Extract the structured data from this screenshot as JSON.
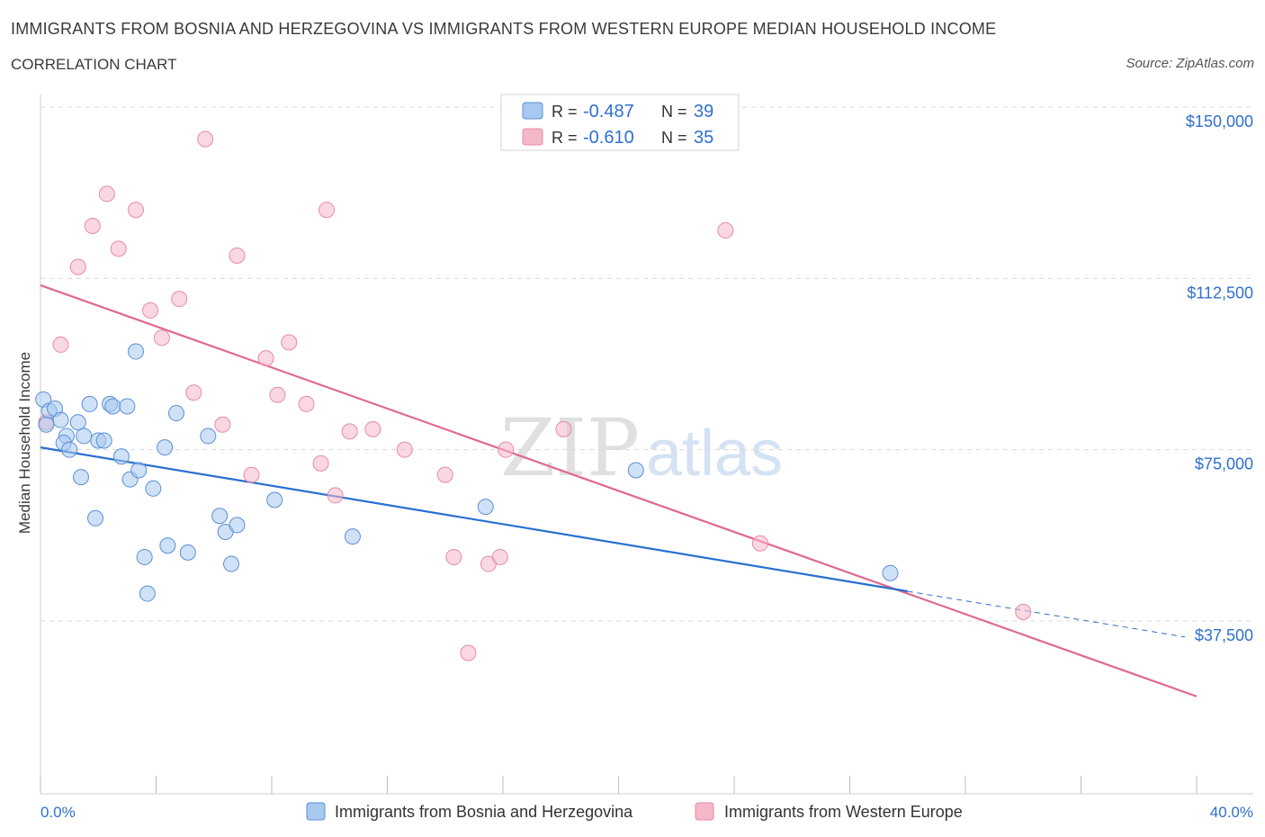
{
  "title": "IMMIGRANTS FROM BOSNIA AND HERZEGOVINA VS IMMIGRANTS FROM WESTERN EUROPE MEDIAN HOUSEHOLD INCOME",
  "subtitle": "CORRELATION CHART",
  "source": "Source: ZipAtlas.com",
  "watermark": {
    "zip": "ZIP",
    "atlas": "atlas"
  },
  "legend_box": [
    {
      "r_label": "R =",
      "r_value": "-0.487",
      "n_label": "N =",
      "n_value": "39"
    },
    {
      "r_label": "R =",
      "r_value": "-0.610",
      "n_label": "N =",
      "n_value": "35"
    }
  ],
  "colors": {
    "blue_fill": "#a8c8f0",
    "blue_stroke": "#5b8fd6",
    "blue_line": "#2a6fd1",
    "pink_fill": "#f5b8c8",
    "pink_stroke": "#e88aa5",
    "pink_line": "#e06890",
    "value_text": "#2f6fcf",
    "grid": "#d8d8d8"
  },
  "chart_data": {
    "type": "scatter",
    "ylabel": "Median Household Income",
    "xlim": [
      0,
      40
    ],
    "ylim": [
      0,
      150000
    ],
    "x_tick_labels": [
      "0.0%",
      "40.0%"
    ],
    "y_ticks": [
      {
        "value": 150000,
        "label": "$150,000"
      },
      {
        "value": 112500,
        "label": "$112,500"
      },
      {
        "value": 75000,
        "label": "$75,000"
      },
      {
        "value": 37500,
        "label": "$37,500"
      }
    ],
    "grid": true,
    "series": [
      {
        "name": "Immigrants from Bosnia and Herzegovina",
        "color": "blue",
        "points": [
          [
            0.1,
            86000
          ],
          [
            0.3,
            83500
          ],
          [
            0.5,
            84000
          ],
          [
            0.7,
            81500
          ],
          [
            0.9,
            78000
          ],
          [
            0.8,
            76500
          ],
          [
            1.0,
            75000
          ],
          [
            1.3,
            81000
          ],
          [
            1.4,
            69000
          ],
          [
            1.5,
            78000
          ],
          [
            1.7,
            85000
          ],
          [
            1.9,
            60000
          ],
          [
            2.0,
            77000
          ],
          [
            2.2,
            77000
          ],
          [
            2.4,
            85000
          ],
          [
            2.5,
            84500
          ],
          [
            2.8,
            73500
          ],
          [
            3.0,
            84500
          ],
          [
            3.1,
            68500
          ],
          [
            3.3,
            96500
          ],
          [
            3.4,
            70500
          ],
          [
            3.6,
            51500
          ],
          [
            3.7,
            43500
          ],
          [
            3.9,
            66500
          ],
          [
            4.3,
            75500
          ],
          [
            4.4,
            54000
          ],
          [
            4.7,
            83000
          ],
          [
            5.1,
            52500
          ],
          [
            5.8,
            78000
          ],
          [
            6.2,
            60500
          ],
          [
            6.4,
            57000
          ],
          [
            6.6,
            50000
          ],
          [
            6.8,
            58500
          ],
          [
            8.1,
            64000
          ],
          [
            10.8,
            56000
          ],
          [
            15.4,
            62500
          ],
          [
            20.6,
            70500
          ],
          [
            29.4,
            48000
          ],
          [
            0.2,
            80500
          ]
        ],
        "trend": {
          "x": [
            0,
            30.0
          ],
          "y": [
            75500,
            44000
          ]
        },
        "trend_ext": {
          "x": [
            30.0,
            39.6
          ],
          "y": [
            44000,
            34000
          ]
        }
      },
      {
        "name": "Immigrants from Western Europe",
        "color": "pink",
        "points": [
          [
            0.2,
            81000
          ],
          [
            0.7,
            98000
          ],
          [
            1.3,
            115000
          ],
          [
            1.8,
            124000
          ],
          [
            2.3,
            131000
          ],
          [
            2.7,
            119000
          ],
          [
            3.3,
            127500
          ],
          [
            3.8,
            105500
          ],
          [
            4.2,
            99500
          ],
          [
            4.8,
            108000
          ],
          [
            5.3,
            87500
          ],
          [
            5.7,
            143000
          ],
          [
            6.3,
            80500
          ],
          [
            6.8,
            117500
          ],
          [
            7.3,
            69500
          ],
          [
            7.8,
            95000
          ],
          [
            8.2,
            87000
          ],
          [
            8.6,
            98500
          ],
          [
            9.2,
            85000
          ],
          [
            9.7,
            72000
          ],
          [
            9.9,
            127500
          ],
          [
            10.2,
            65000
          ],
          [
            10.7,
            79000
          ],
          [
            11.5,
            79500
          ],
          [
            12.6,
            75000
          ],
          [
            14.0,
            69500
          ],
          [
            14.3,
            51500
          ],
          [
            14.8,
            30500
          ],
          [
            15.5,
            50000
          ],
          [
            15.9,
            51500
          ],
          [
            16.1,
            75000
          ],
          [
            18.1,
            79500
          ],
          [
            23.7,
            123000
          ],
          [
            24.9,
            54500
          ],
          [
            34.0,
            39500
          ]
        ],
        "trend": {
          "x": [
            0,
            40.0
          ],
          "y": [
            111000,
            21000
          ]
        }
      }
    ]
  }
}
